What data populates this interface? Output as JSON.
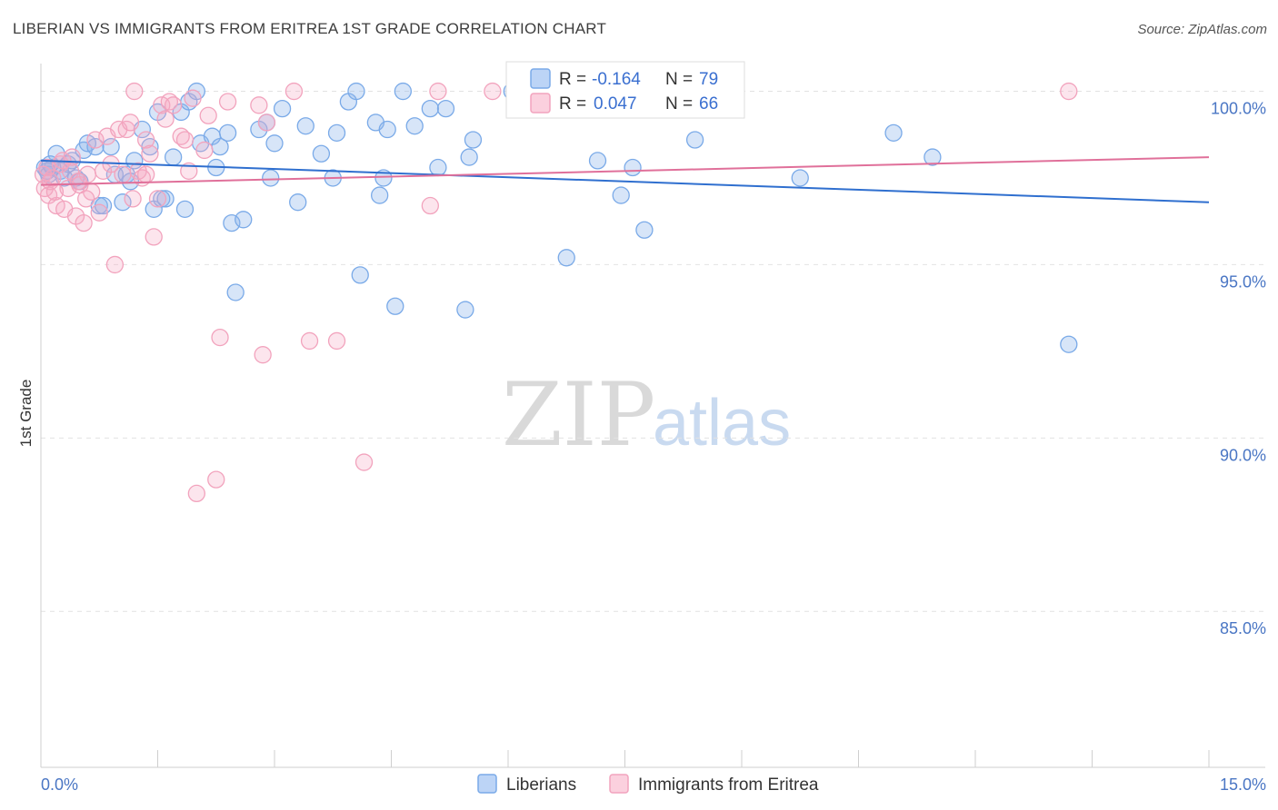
{
  "header": {
    "title": "LIBERIAN VS IMMIGRANTS FROM ERITREA 1ST GRADE CORRELATION CHART",
    "source": "Source: ZipAtlas.com"
  },
  "watermark": {
    "zip": "ZIP",
    "atlas": "atlas"
  },
  "stats_legend": {
    "rows": [
      {
        "r_label": "R =",
        "r_value": "-0.164",
        "n_label": "N =",
        "n_value": "79",
        "color": "#7aaae8"
      },
      {
        "r_label": "R =",
        "r_value": "0.047",
        "n_label": "N =",
        "n_value": "66",
        "color": "#f2a3bd"
      }
    ]
  },
  "chart_data": {
    "type": "scatter",
    "ylabel": "1st Grade",
    "xlim": [
      0,
      15
    ],
    "ylim": [
      80.5,
      100.8
    ],
    "x_tick_labels": [
      "0.0%",
      "15.0%"
    ],
    "y_ticks": [
      {
        "value": 85,
        "label": "85.0%"
      },
      {
        "value": 90,
        "label": "90.0%"
      },
      {
        "value": 95,
        "label": "95.0%"
      },
      {
        "value": 100,
        "label": "100.0%"
      }
    ],
    "grid": "horizontal dashed",
    "legend_position": "bottom-center",
    "series": [
      {
        "name": "Liberians",
        "color": "#7aaae8",
        "line_color": "#2f6fcf",
        "trend": {
          "x0": 0,
          "y0": 98.0,
          "x1": 15,
          "y1": 96.8
        },
        "points": [
          [
            0.05,
            97.8
          ],
          [
            0.1,
            97.6
          ],
          [
            0.15,
            97.8
          ],
          [
            0.2,
            98.2
          ],
          [
            0.25,
            97.7
          ],
          [
            0.3,
            97.5
          ],
          [
            0.35,
            97.9
          ],
          [
            0.4,
            98.0
          ],
          [
            0.45,
            97.5
          ],
          [
            0.5,
            97.4
          ],
          [
            0.55,
            98.3
          ],
          [
            0.6,
            98.5
          ],
          [
            0.7,
            98.4
          ],
          [
            0.75,
            96.7
          ],
          [
            0.8,
            96.7
          ],
          [
            0.9,
            98.4
          ],
          [
            0.95,
            97.6
          ],
          [
            1.05,
            96.8
          ],
          [
            1.1,
            97.6
          ],
          [
            1.15,
            97.4
          ],
          [
            1.2,
            98.0
          ],
          [
            1.3,
            98.9
          ],
          [
            1.4,
            98.4
          ],
          [
            1.45,
            96.6
          ],
          [
            1.5,
            99.4
          ],
          [
            1.55,
            96.9
          ],
          [
            1.6,
            96.9
          ],
          [
            1.7,
            98.1
          ],
          [
            1.8,
            99.4
          ],
          [
            1.85,
            96.6
          ],
          [
            1.9,
            99.7
          ],
          [
            2.0,
            100.0
          ],
          [
            2.05,
            98.5
          ],
          [
            2.2,
            98.7
          ],
          [
            2.25,
            97.8
          ],
          [
            2.3,
            98.4
          ],
          [
            2.4,
            98.8
          ],
          [
            2.45,
            96.2
          ],
          [
            2.5,
            94.2
          ],
          [
            2.6,
            96.3
          ],
          [
            2.8,
            98.9
          ],
          [
            2.9,
            99.1
          ],
          [
            2.95,
            97.5
          ],
          [
            3.0,
            98.5
          ],
          [
            3.1,
            99.5
          ],
          [
            3.3,
            96.8
          ],
          [
            3.4,
            99.0
          ],
          [
            3.6,
            98.2
          ],
          [
            3.8,
            98.8
          ],
          [
            3.75,
            97.5
          ],
          [
            3.95,
            99.7
          ],
          [
            4.05,
            100.0
          ],
          [
            4.1,
            94.7
          ],
          [
            4.3,
            99.1
          ],
          [
            4.35,
            97.0
          ],
          [
            4.4,
            97.5
          ],
          [
            4.45,
            98.9
          ],
          [
            4.55,
            93.8
          ],
          [
            4.65,
            100.0
          ],
          [
            4.8,
            99.0
          ],
          [
            5.0,
            99.5
          ],
          [
            5.1,
            97.8
          ],
          [
            5.2,
            99.5
          ],
          [
            5.45,
            93.7
          ],
          [
            5.5,
            98.1
          ],
          [
            5.55,
            98.6
          ],
          [
            6.05,
            100.0
          ],
          [
            6.75,
            95.2
          ],
          [
            7.15,
            98.0
          ],
          [
            7.45,
            97.0
          ],
          [
            7.6,
            97.8
          ],
          [
            7.75,
            96.0
          ],
          [
            8.4,
            98.6
          ],
          [
            9.75,
            97.5
          ],
          [
            10.95,
            98.8
          ],
          [
            11.45,
            98.1
          ],
          [
            13.2,
            92.7
          ],
          [
            0.08,
            97.7
          ],
          [
            0.12,
            97.9
          ]
        ]
      },
      {
        "name": "Immigrants from Eritrea",
        "color": "#f2a3bd",
        "line_color": "#e0709a",
        "trend": {
          "x0": 0,
          "y0": 97.3,
          "x1": 15,
          "y1": 98.1
        },
        "points": [
          [
            0.05,
            97.2
          ],
          [
            0.1,
            97.0
          ],
          [
            0.15,
            97.5
          ],
          [
            0.2,
            96.7
          ],
          [
            0.25,
            97.9
          ],
          [
            0.3,
            96.6
          ],
          [
            0.35,
            97.2
          ],
          [
            0.4,
            98.1
          ],
          [
            0.45,
            96.4
          ],
          [
            0.5,
            97.3
          ],
          [
            0.55,
            96.2
          ],
          [
            0.6,
            97.6
          ],
          [
            0.65,
            97.1
          ],
          [
            0.7,
            98.6
          ],
          [
            0.75,
            96.5
          ],
          [
            0.8,
            97.7
          ],
          [
            0.85,
            98.7
          ],
          [
            0.9,
            97.9
          ],
          [
            0.95,
            95.0
          ],
          [
            1.0,
            98.9
          ],
          [
            1.05,
            97.6
          ],
          [
            1.1,
            98.9
          ],
          [
            1.15,
            99.1
          ],
          [
            1.2,
            100.0
          ],
          [
            1.25,
            97.7
          ],
          [
            1.3,
            97.5
          ],
          [
            1.35,
            98.6
          ],
          [
            1.4,
            98.2
          ],
          [
            1.45,
            95.8
          ],
          [
            1.5,
            96.9
          ],
          [
            1.55,
            99.6
          ],
          [
            1.6,
            99.2
          ],
          [
            1.65,
            99.7
          ],
          [
            1.7,
            99.6
          ],
          [
            1.8,
            98.7
          ],
          [
            1.85,
            98.6
          ],
          [
            1.9,
            97.7
          ],
          [
            1.95,
            99.8
          ],
          [
            2.0,
            88.4
          ],
          [
            2.1,
            98.3
          ],
          [
            2.15,
            99.3
          ],
          [
            2.25,
            88.8
          ],
          [
            2.3,
            92.9
          ],
          [
            2.4,
            99.7
          ],
          [
            2.8,
            99.6
          ],
          [
            2.85,
            92.4
          ],
          [
            2.9,
            99.1
          ],
          [
            3.25,
            100.0
          ],
          [
            3.45,
            92.8
          ],
          [
            3.8,
            92.8
          ],
          [
            4.15,
            89.3
          ],
          [
            5.0,
            96.7
          ],
          [
            5.1,
            100.0
          ],
          [
            5.8,
            100.0
          ],
          [
            13.2,
            100.0
          ],
          [
            0.03,
            97.6
          ],
          [
            0.08,
            97.8
          ],
          [
            0.12,
            97.4
          ],
          [
            0.18,
            97.1
          ],
          [
            0.28,
            98.0
          ],
          [
            0.38,
            97.7
          ],
          [
            0.48,
            97.4
          ],
          [
            0.58,
            96.9
          ],
          [
            1.18,
            96.9
          ],
          [
            1.35,
            97.6
          ],
          [
            6.2,
            100.0
          ]
        ]
      }
    ]
  }
}
